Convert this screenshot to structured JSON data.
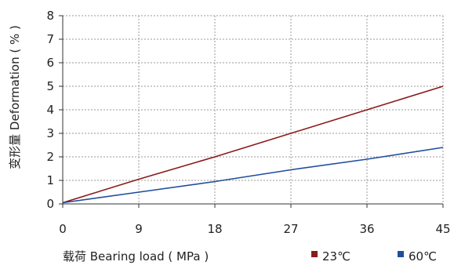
{
  "chart_data": {
    "type": "line",
    "title": "",
    "xlabel": "载荷 Bearing load ( MPa )",
    "ylabel": "变形量 Deformation ( % )",
    "xlim": [
      0,
      45
    ],
    "ylim": [
      0,
      8
    ],
    "x_ticks": [
      "0",
      "9",
      "18",
      "27",
      "36",
      "45"
    ],
    "y_ticks": [
      "0",
      "1",
      "2",
      "3",
      "4",
      "5",
      "6",
      "7",
      "8"
    ],
    "grid": "dotted vertical and horizontal",
    "legend_position": "bottom-right",
    "series": [
      {
        "name": "23℃",
        "color": "#8b1a1a",
        "x": [
          0,
          9,
          18,
          27,
          36,
          45
        ],
        "y": [
          0.05,
          1.05,
          2.0,
          3.0,
          4.0,
          5.0
        ]
      },
      {
        "name": "60℃",
        "color": "#1f4e9c",
        "x": [
          0,
          9,
          18,
          27,
          36,
          45
        ],
        "y": [
          0.05,
          0.5,
          0.95,
          1.45,
          1.9,
          2.4
        ]
      }
    ]
  }
}
